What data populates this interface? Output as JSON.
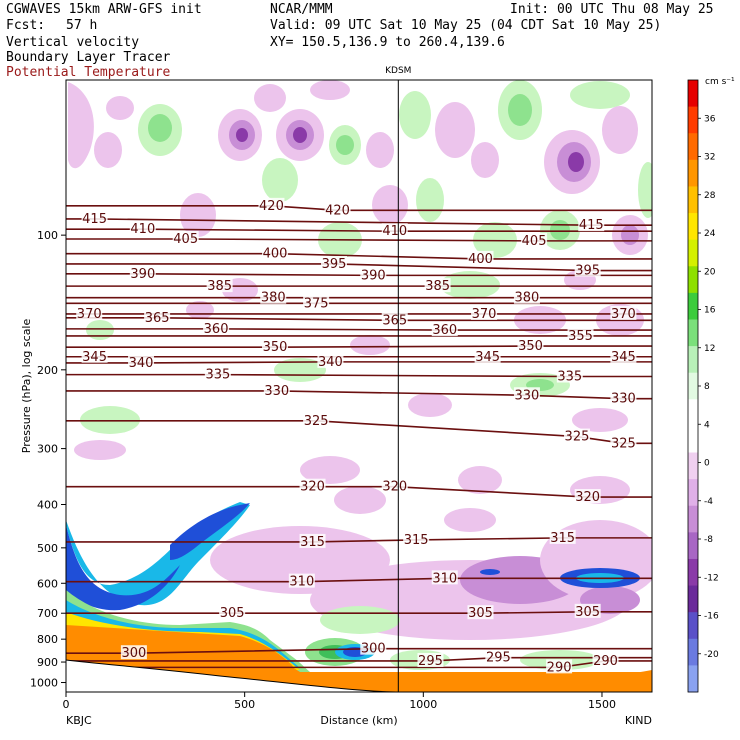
{
  "header": {
    "model": "CGWAVES 15km ARW-GFS init",
    "fcst_label": "Fcst:",
    "fcst_value": "57 h",
    "field1": "Vertical velocity",
    "field2": "Boundary Layer Tracer",
    "field3": "Potential Temperature",
    "center": "NCAR/MMM",
    "init": "Init: 00 UTC Thu 08 May 25",
    "valid": "Valid: 09 UTC Sat 10 May 25 (04 CDT Sat 10 May 25)",
    "xy": "XY= 150.5,136.9 to 260.4,139.6"
  },
  "colors": {
    "theta": "#6b0f0f",
    "pos_light": "#c8f5c0",
    "pos_mid": "#8ee28e",
    "pos_dark": "#3fbf5a",
    "neg_light": "#ecc4ec",
    "neg_mid": "#c88ed6",
    "neg_dark": "#8a3aa8",
    "pbl_orange": "#ff8c00",
    "pbl_blue": "#1f4fd8",
    "pbl_cyan": "#19b8e8"
  },
  "chart_data": {
    "type": "cross-section",
    "title": "KDSM",
    "xlabel": "Distance (km)",
    "ylabel": "Pressure (hPa), log scale",
    "x_ticks": [
      0,
      500,
      1000,
      1500
    ],
    "xlim": [
      0,
      1640
    ],
    "y_ticks": [
      100,
      200,
      300,
      400,
      500,
      600,
      700,
      800,
      900,
      1000
    ],
    "ylim": [
      1050,
      45
    ],
    "y_scale": "log",
    "left_station": "KBJC",
    "right_station": "KIND",
    "marker_station": "KDSM",
    "marker_x": 930,
    "colorbar": {
      "units": "cm s⁻¹",
      "ticks": [
        36,
        32,
        28,
        24,
        20,
        16,
        12,
        8,
        4,
        0,
        -4,
        -8,
        -12,
        -16,
        -20
      ],
      "colors": [
        "#e60000",
        "#ff3c00",
        "#ff6a00",
        "#ff9600",
        "#ffc000",
        "#ffe600",
        "#d4f000",
        "#8ee000",
        "#3ccc3c",
        "#7be07b",
        "#b8f0b8",
        "#e2fae2",
        "#ffffff",
        "#ffffff",
        "#f0d0f0",
        "#e0b0e8",
        "#c88ed6",
        "#a866c4",
        "#8a3aa8",
        "#6a2a9a",
        "#5a50c8",
        "#6a7ae0",
        "#8aa2f0"
      ]
    },
    "theta_labels": [
      {
        "v": "415",
        "x": 80,
        "p": 92
      },
      {
        "v": "410",
        "x": 215,
        "p": 97
      },
      {
        "v": "405",
        "x": 335,
        "p": 102
      },
      {
        "v": "420",
        "x": 575,
        "p": 86
      },
      {
        "v": "420",
        "x": 760,
        "p": 88
      },
      {
        "v": "410",
        "x": 920,
        "p": 98
      },
      {
        "v": "405",
        "x": 1310,
        "p": 103
      },
      {
        "v": "415",
        "x": 1470,
        "p": 95
      },
      {
        "v": "400",
        "x": 585,
        "p": 110
      },
      {
        "v": "395",
        "x": 750,
        "p": 116
      },
      {
        "v": "400",
        "x": 1160,
        "p": 113
      },
      {
        "v": "395",
        "x": 1460,
        "p": 120
      },
      {
        "v": "390",
        "x": 215,
        "p": 122
      },
      {
        "v": "390",
        "x": 860,
        "p": 123
      },
      {
        "v": "385",
        "x": 430,
        "p": 130
      },
      {
        "v": "385",
        "x": 1040,
        "p": 130
      },
      {
        "v": "380",
        "x": 580,
        "p": 138
      },
      {
        "v": "375",
        "x": 700,
        "p": 142
      },
      {
        "v": "380",
        "x": 1290,
        "p": 138
      },
      {
        "v": "370",
        "x": 65,
        "p": 150
      },
      {
        "v": "365",
        "x": 255,
        "p": 153
      },
      {
        "v": "365",
        "x": 920,
        "p": 155
      },
      {
        "v": "370",
        "x": 1170,
        "p": 150
      },
      {
        "v": "370",
        "x": 1560,
        "p": 150
      },
      {
        "v": "360",
        "x": 420,
        "p": 162
      },
      {
        "v": "360",
        "x": 1060,
        "p": 163
      },
      {
        "v": "355",
        "x": 1440,
        "p": 168
      },
      {
        "v": "350",
        "x": 585,
        "p": 178
      },
      {
        "v": "350",
        "x": 1300,
        "p": 177
      },
      {
        "v": "345",
        "x": 80,
        "p": 187
      },
      {
        "v": "345",
        "x": 1180,
        "p": 187
      },
      {
        "v": "345",
        "x": 1560,
        "p": 187
      },
      {
        "v": "340",
        "x": 210,
        "p": 193
      },
      {
        "v": "340",
        "x": 740,
        "p": 192
      },
      {
        "v": "335",
        "x": 425,
        "p": 205
      },
      {
        "v": "335",
        "x": 1410,
        "p": 207
      },
      {
        "v": "330",
        "x": 590,
        "p": 223
      },
      {
        "v": "330",
        "x": 1290,
        "p": 228
      },
      {
        "v": "330",
        "x": 1560,
        "p": 232
      },
      {
        "v": "325",
        "x": 700,
        "p": 260
      },
      {
        "v": "325",
        "x": 1430,
        "p": 282
      },
      {
        "v": "325",
        "x": 1560,
        "p": 292
      },
      {
        "v": "320",
        "x": 690,
        "p": 365
      },
      {
        "v": "320",
        "x": 920,
        "p": 365
      },
      {
        "v": "320",
        "x": 1460,
        "p": 385
      },
      {
        "v": "315",
        "x": 690,
        "p": 485
      },
      {
        "v": "315",
        "x": 980,
        "p": 480
      },
      {
        "v": "315",
        "x": 1390,
        "p": 475
      },
      {
        "v": "310",
        "x": 660,
        "p": 595
      },
      {
        "v": "310",
        "x": 1060,
        "p": 585
      },
      {
        "v": "305",
        "x": 465,
        "p": 700
      },
      {
        "v": "305",
        "x": 1160,
        "p": 700
      },
      {
        "v": "305",
        "x": 1460,
        "p": 695
      },
      {
        "v": "300",
        "x": 190,
        "p": 860
      },
      {
        "v": "300",
        "x": 860,
        "p": 840
      },
      {
        "v": "295",
        "x": 1020,
        "p": 895
      },
      {
        "v": "295",
        "x": 1210,
        "p": 880
      },
      {
        "v": "290",
        "x": 1380,
        "p": 925
      },
      {
        "v": "290",
        "x": 1510,
        "p": 895
      }
    ]
  }
}
